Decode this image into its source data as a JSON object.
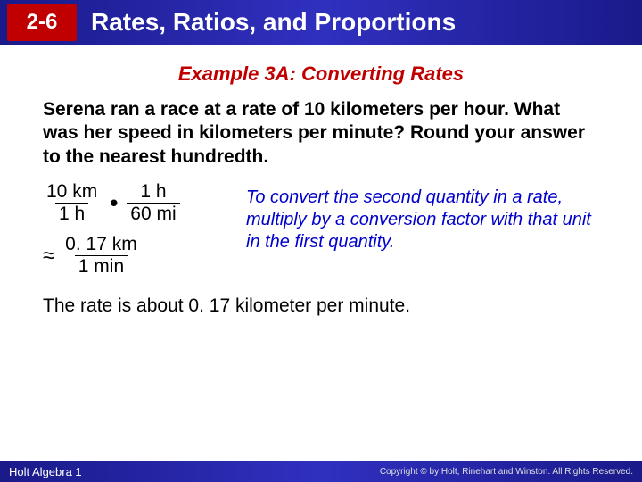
{
  "header": {
    "lesson_number": "2-6",
    "title": "Rates, Ratios, and Proportions",
    "bg_gradient": [
      "#1a1a8a",
      "#3030c0"
    ],
    "badge_bg": "#c00000",
    "text_color": "#ffffff"
  },
  "example": {
    "title": "Example 3A: Converting Rates",
    "title_color": "#c00000",
    "problem": "Serena ran a race at a rate of 10 kilometers per hour. What was her speed in kilometers per minute? Round your answer to the nearest hundredth.",
    "frac1_num": "10 km",
    "frac1_den": "1 h",
    "operator": "•",
    "frac2_num": "1 h",
    "frac2_den": "60 mi",
    "approx_symbol": "≈",
    "result_num": "0. 17 km",
    "result_den": "1 min",
    "note": "To convert the second quantity in a rate, multiply by a conversion factor with that unit in the first quantity.",
    "note_color": "#0000cc",
    "conclusion": "The rate is about 0. 17 kilometer per minute."
  },
  "footer": {
    "left": "Holt Algebra 1",
    "right": "Copyright © by Holt, Rinehart and Winston. All Rights Reserved."
  },
  "typography": {
    "body_font": "Arial",
    "title_fontsize_pt": 22,
    "body_fontsize_pt": 21,
    "note_fontsize_pt": 20
  }
}
